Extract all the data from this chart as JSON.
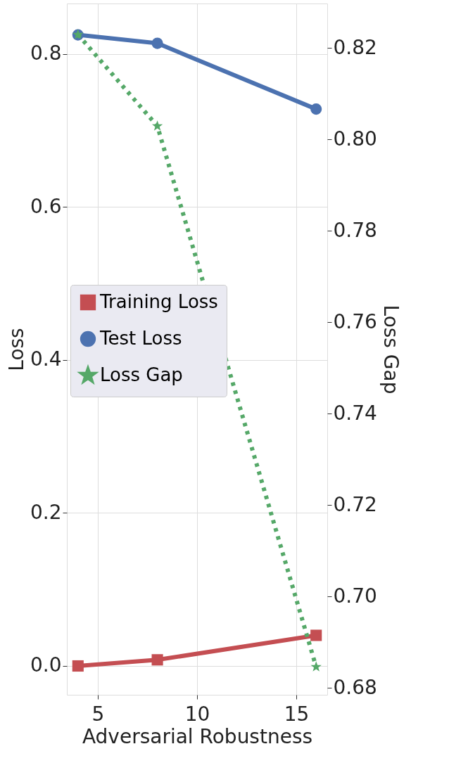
{
  "chart_data": {
    "type": "line",
    "xlabel": "Adversarial Robustness",
    "ylabel": "Loss",
    "y2label": "Loss Gap",
    "x": [
      4,
      8,
      16
    ],
    "series": [
      {
        "name": "Training Loss",
        "color": "#c44e52",
        "values": [
          0.0,
          0.008,
          0.04
        ],
        "marker": "square",
        "line_style": "solid"
      },
      {
        "name": "Test Loss",
        "color": "#4c72b0",
        "values": [
          0.825,
          0.814,
          0.728
        ],
        "marker": "circle",
        "line_style": "solid"
      },
      {
        "name": "Loss Gap",
        "color": "#55a868",
        "values": [
          0.8229,
          0.8029,
          0.6846
        ],
        "marker": "star",
        "line_style": "dotted",
        "axis": "y2"
      }
    ],
    "xlim": [
      3.44,
      16.56
    ],
    "xticks": [
      5,
      10,
      15
    ],
    "ylim": [
      -0.0377,
      0.866
    ],
    "yticks": [
      {
        "value": 0,
        "label": "0.0"
      },
      0.2,
      0.4,
      0.6,
      0.8
    ],
    "y2lim": [
      0.6785,
      0.8297
    ],
    "y2ticks": [
      0.68,
      {
        "value": 0.7,
        "label": "0.70"
      },
      0.72,
      0.74,
      0.76,
      0.78,
      {
        "value": 0.8,
        "label": "0.80"
      },
      0.82
    ],
    "grid": true,
    "legend": "left"
  }
}
